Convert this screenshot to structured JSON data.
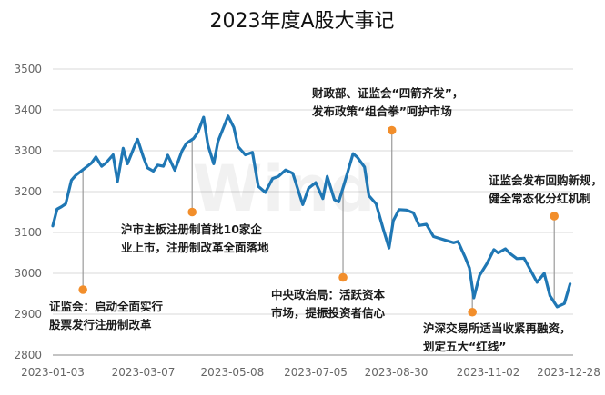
{
  "chart_data": {
    "type": "line",
    "title": "2023年度A股大事记",
    "xlabel": "",
    "ylabel": "",
    "ylim": [
      2800,
      3500
    ],
    "yticks": [
      2800,
      2900,
      3000,
      3100,
      3200,
      3300,
      3400,
      3500
    ],
    "x_tick_labels": [
      "2023-01-03",
      "2023-03-07",
      "2023-05-08",
      "2023-07-05",
      "2023-08-30",
      "2023-11-02",
      "2023-12-28"
    ],
    "grid": "horizontal",
    "legend": "none",
    "watermark_text": "Wind",
    "colors": {
      "series": "#1f77b4",
      "marker": "#f28e2b",
      "grid": "#d9d9d9",
      "text": "#1a1a1a"
    },
    "series": [
      {
        "x": [
          "2023-01-03",
          "2023-01-06",
          "2023-01-09",
          "2023-01-12",
          "2023-01-16",
          "2023-01-19",
          "2023-01-30",
          "2023-02-02",
          "2023-02-06",
          "2023-02-09",
          "2023-02-14",
          "2023-02-17",
          "2023-02-21",
          "2023-02-24",
          "2023-03-01",
          "2023-03-03",
          "2023-03-07",
          "2023-03-10",
          "2023-03-14",
          "2023-03-17",
          "2023-03-21",
          "2023-03-24",
          "2023-03-29",
          "2023-04-03",
          "2023-04-06",
          "2023-04-11",
          "2023-04-14",
          "2023-04-18",
          "2023-04-21",
          "2023-04-25",
          "2023-04-28",
          "2023-05-05",
          "2023-05-09",
          "2023-05-12",
          "2023-05-17",
          "2023-05-22",
          "2023-05-26",
          "2023-05-31",
          "2023-06-05",
          "2023-06-09",
          "2023-06-14",
          "2023-06-19",
          "2023-06-26",
          "2023-06-30",
          "2023-07-05",
          "2023-07-10",
          "2023-07-13",
          "2023-07-18",
          "2023-07-21",
          "2023-07-25",
          "2023-07-31",
          "2023-08-03",
          "2023-08-08",
          "2023-08-11",
          "2023-08-16",
          "2023-08-21",
          "2023-08-25",
          "2023-08-28",
          "2023-09-01",
          "2023-09-06",
          "2023-09-11",
          "2023-09-15",
          "2023-09-20",
          "2023-09-25",
          "2023-10-09",
          "2023-10-12",
          "2023-10-17",
          "2023-10-20",
          "2023-10-23",
          "2023-10-27",
          "2023-11-01",
          "2023-11-06",
          "2023-11-09",
          "2023-11-14",
          "2023-11-17",
          "2023-11-22",
          "2023-11-27",
          "2023-12-01",
          "2023-12-06",
          "2023-12-11",
          "2023-12-15",
          "2023-12-20",
          "2023-12-25",
          "2023-12-29"
        ],
        "values": [
          3116,
          3157,
          3163,
          3170,
          3228,
          3240,
          3270,
          3285,
          3262,
          3270,
          3290,
          3225,
          3306,
          3268,
          3312,
          3328,
          3285,
          3258,
          3250,
          3265,
          3262,
          3289,
          3252,
          3300,
          3318,
          3330,
          3345,
          3382,
          3314,
          3268,
          3323,
          3385,
          3357,
          3310,
          3290,
          3296,
          3213,
          3198,
          3232,
          3237,
          3253,
          3245,
          3168,
          3208,
          3222,
          3183,
          3237,
          3180,
          3175,
          3221,
          3293,
          3284,
          3260,
          3190,
          3170,
          3108,
          3062,
          3129,
          3156,
          3155,
          3148,
          3117,
          3120,
          3090,
          3075,
          3078,
          3039,
          3013,
          2940,
          2995,
          3023,
          3058,
          3050,
          3060,
          3049,
          3036,
          3037,
          3011,
          2978,
          3000,
          2945,
          2918,
          2926,
          2974
        ]
      }
    ],
    "annotations": [
      {
        "date": "2023-01-24",
        "value": 2960,
        "lines": [
          "证监会：启动全面实行",
          "股票发行注册制改革"
        ]
      },
      {
        "date": "2023-04-10",
        "value": 3150,
        "lines": [
          "沪市主板注册制首批10家企",
          "业上市，注册制改革全面落地"
        ]
      },
      {
        "date": "2023-07-24",
        "value": 2990,
        "lines": [
          "中央政治局：活跃资本",
          "市场，提振投资者信心"
        ]
      },
      {
        "date": "2023-08-27",
        "value": 3350,
        "lines": [
          "财政部、证监会“四箭齐发”，",
          "发布政策“组合拳”呵护市场"
        ]
      },
      {
        "date": "2023-10-22",
        "value": 2905,
        "lines": [
          "沪深交易所适当收紧再融资，",
          "划定五大“红线”"
        ]
      },
      {
        "date": "2023-12-18",
        "value": 3140,
        "lines": [
          "证监会发布回购新规，",
          "健全常态化分红机制"
        ]
      }
    ]
  }
}
